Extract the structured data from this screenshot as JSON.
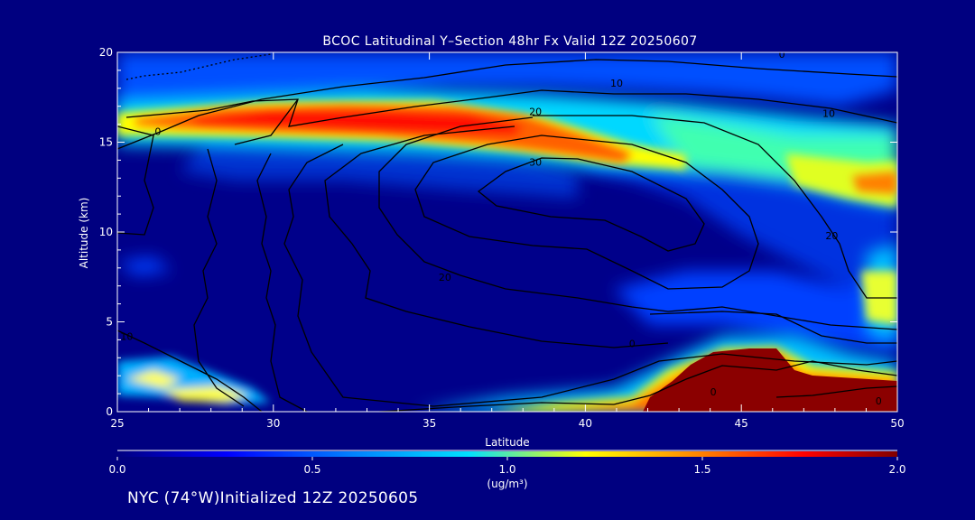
{
  "chart_data": {
    "type": "heatmap",
    "title": "BCOC Latitudinal Y–Section 48hr  Fx Valid 12Z 20250607",
    "xlabel": "Latitude",
    "ylabel": "Altitude (km)",
    "xlim": [
      25,
      50
    ],
    "ylim": [
      0,
      20
    ],
    "x_ticks": [
      25,
      30,
      35,
      40,
      45,
      50
    ],
    "y_ticks": [
      0,
      5,
      10,
      15,
      20
    ],
    "colorbar": {
      "range": [
        0.0,
        2.0
      ],
      "ticks": [
        "0.0",
        "0.5",
        "1.0",
        "1.5",
        "2.0"
      ],
      "unit": "(ug/m³)",
      "colors": [
        "#000080",
        "#0000ff",
        "#0080ff",
        "#00e0ff",
        "#ffff00",
        "#ff8000",
        "#ff0000",
        "#800000"
      ]
    },
    "concentration_regions": [
      {
        "lat_min": 25,
        "lat_max": 35,
        "alt_min": 15.3,
        "alt_max": 17.3,
        "value": 1.6
      },
      {
        "lat_min": 35,
        "lat_max": 40,
        "alt_min": 14.8,
        "alt_max": 16.8,
        "value": 1.4
      },
      {
        "lat_min": 39,
        "lat_max": 44,
        "alt_min": 13.5,
        "alt_max": 15.5,
        "value": 1.1
      },
      {
        "lat_min": 43,
        "lat_max": 50,
        "alt_min": 12.0,
        "alt_max": 15.0,
        "value": 0.9
      },
      {
        "lat_min": 48,
        "lat_max": 50,
        "alt_min": 12.3,
        "alt_max": 13.5,
        "value": 1.3
      },
      {
        "lat_min": 43,
        "lat_max": 47,
        "alt_min": 0,
        "alt_max": 3.8,
        "value": 2.0
      },
      {
        "lat_min": 47,
        "lat_max": 50,
        "alt_min": 0,
        "alt_max": 1.3,
        "value": 2.0
      },
      {
        "lat_min": 37,
        "lat_max": 43,
        "alt_min": 0,
        "alt_max": 1.2,
        "value": 1.0
      },
      {
        "lat_min": 25,
        "lat_max": 28.5,
        "alt_min": 0.7,
        "alt_max": 2.5,
        "value": 1.0
      }
    ],
    "contour_labels": [
      {
        "lat": 38.4,
        "alt": 16.7,
        "value": "20"
      },
      {
        "lat": 38.4,
        "alt": 13.9,
        "value": "30"
      },
      {
        "lat": 41.0,
        "alt": 18.3,
        "value": "10"
      },
      {
        "lat": 47.8,
        "alt": 16.6,
        "value": "10"
      },
      {
        "lat": 46.3,
        "alt": 19.9,
        "value": "0"
      },
      {
        "lat": 26.3,
        "alt": 15.6,
        "value": "0"
      },
      {
        "lat": 35.5,
        "alt": 7.5,
        "value": "20"
      },
      {
        "lat": 47.9,
        "alt": 9.8,
        "value": "20"
      },
      {
        "lat": 25.3,
        "alt": 4.2,
        "value": "10"
      },
      {
        "lat": 41.5,
        "alt": 3.8,
        "value": "0"
      },
      {
        "lat": 44.1,
        "alt": 1.1,
        "value": "0"
      },
      {
        "lat": 49.4,
        "alt": 0.6,
        "value": "0"
      }
    ]
  },
  "footer_text": "NYC (74°W)Initialized 12Z 20250605"
}
